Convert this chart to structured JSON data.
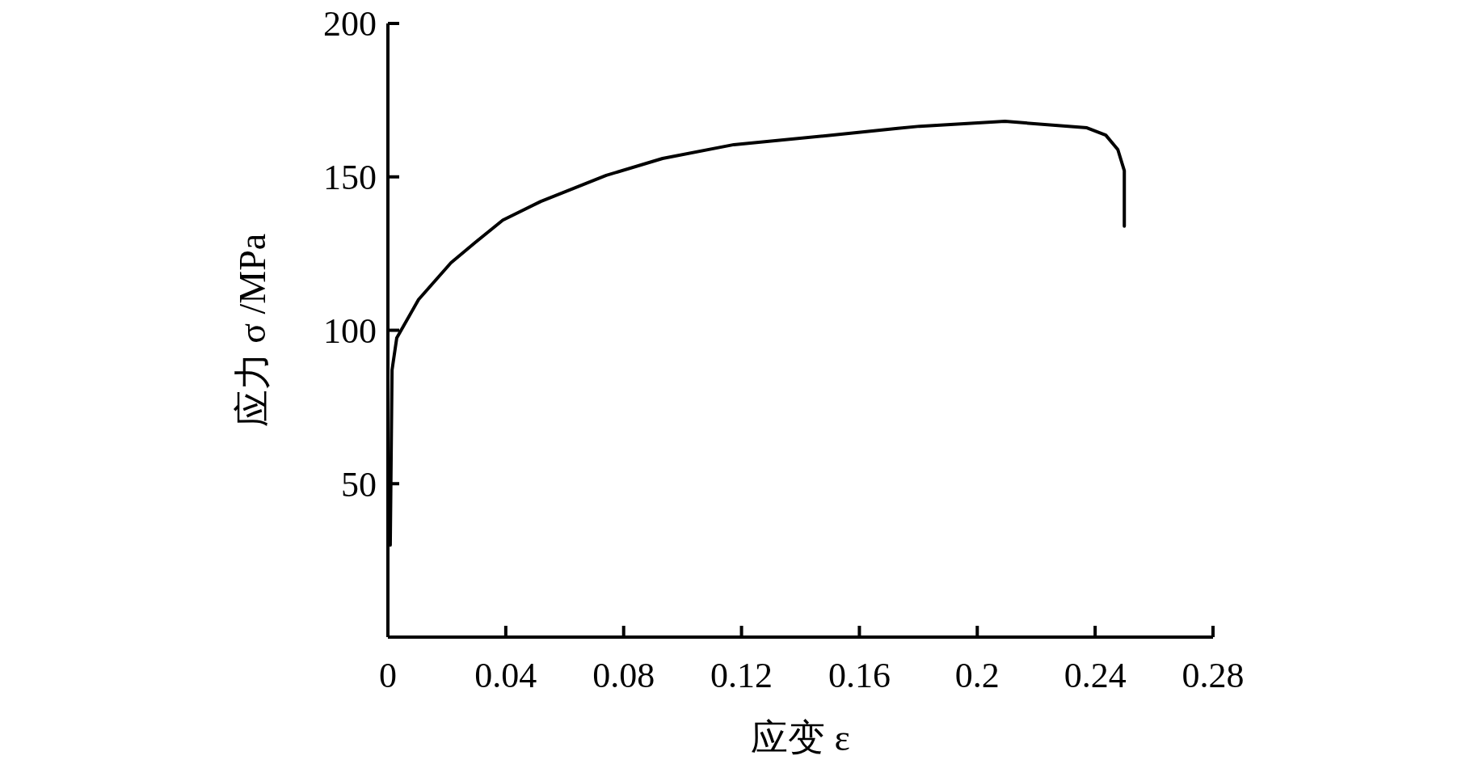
{
  "chart_data": {
    "type": "line",
    "xlabel": "应变 ε",
    "ylabel": "应力 σ /MPa",
    "x": [
      0.0008,
      0.0014,
      0.003,
      0.0104,
      0.0214,
      0.0296,
      0.039,
      0.0519,
      0.0741,
      0.0932,
      0.1174,
      0.1484,
      0.173,
      0.1805,
      0.2094,
      0.2372,
      0.2436,
      0.2477,
      0.2499,
      0.2499
    ],
    "series": [
      {
        "color": "#000000",
        "values": [
          30,
          87,
          97.5,
          110,
          122,
          128.6,
          135.9,
          142,
          150.5,
          156,
          160.5,
          163.4,
          165.8,
          166.5,
          168.1,
          166,
          163.6,
          158.9,
          152,
          133.9
        ]
      }
    ],
    "xlim": [
      0,
      0.28
    ],
    "xticks": [
      0,
      0.04,
      0.08,
      0.12,
      0.16,
      0.2,
      0.24,
      0.28
    ],
    "ylim": [
      0,
      200
    ],
    "yticks": [
      50,
      100,
      150,
      200
    ],
    "line_style": "solid"
  }
}
